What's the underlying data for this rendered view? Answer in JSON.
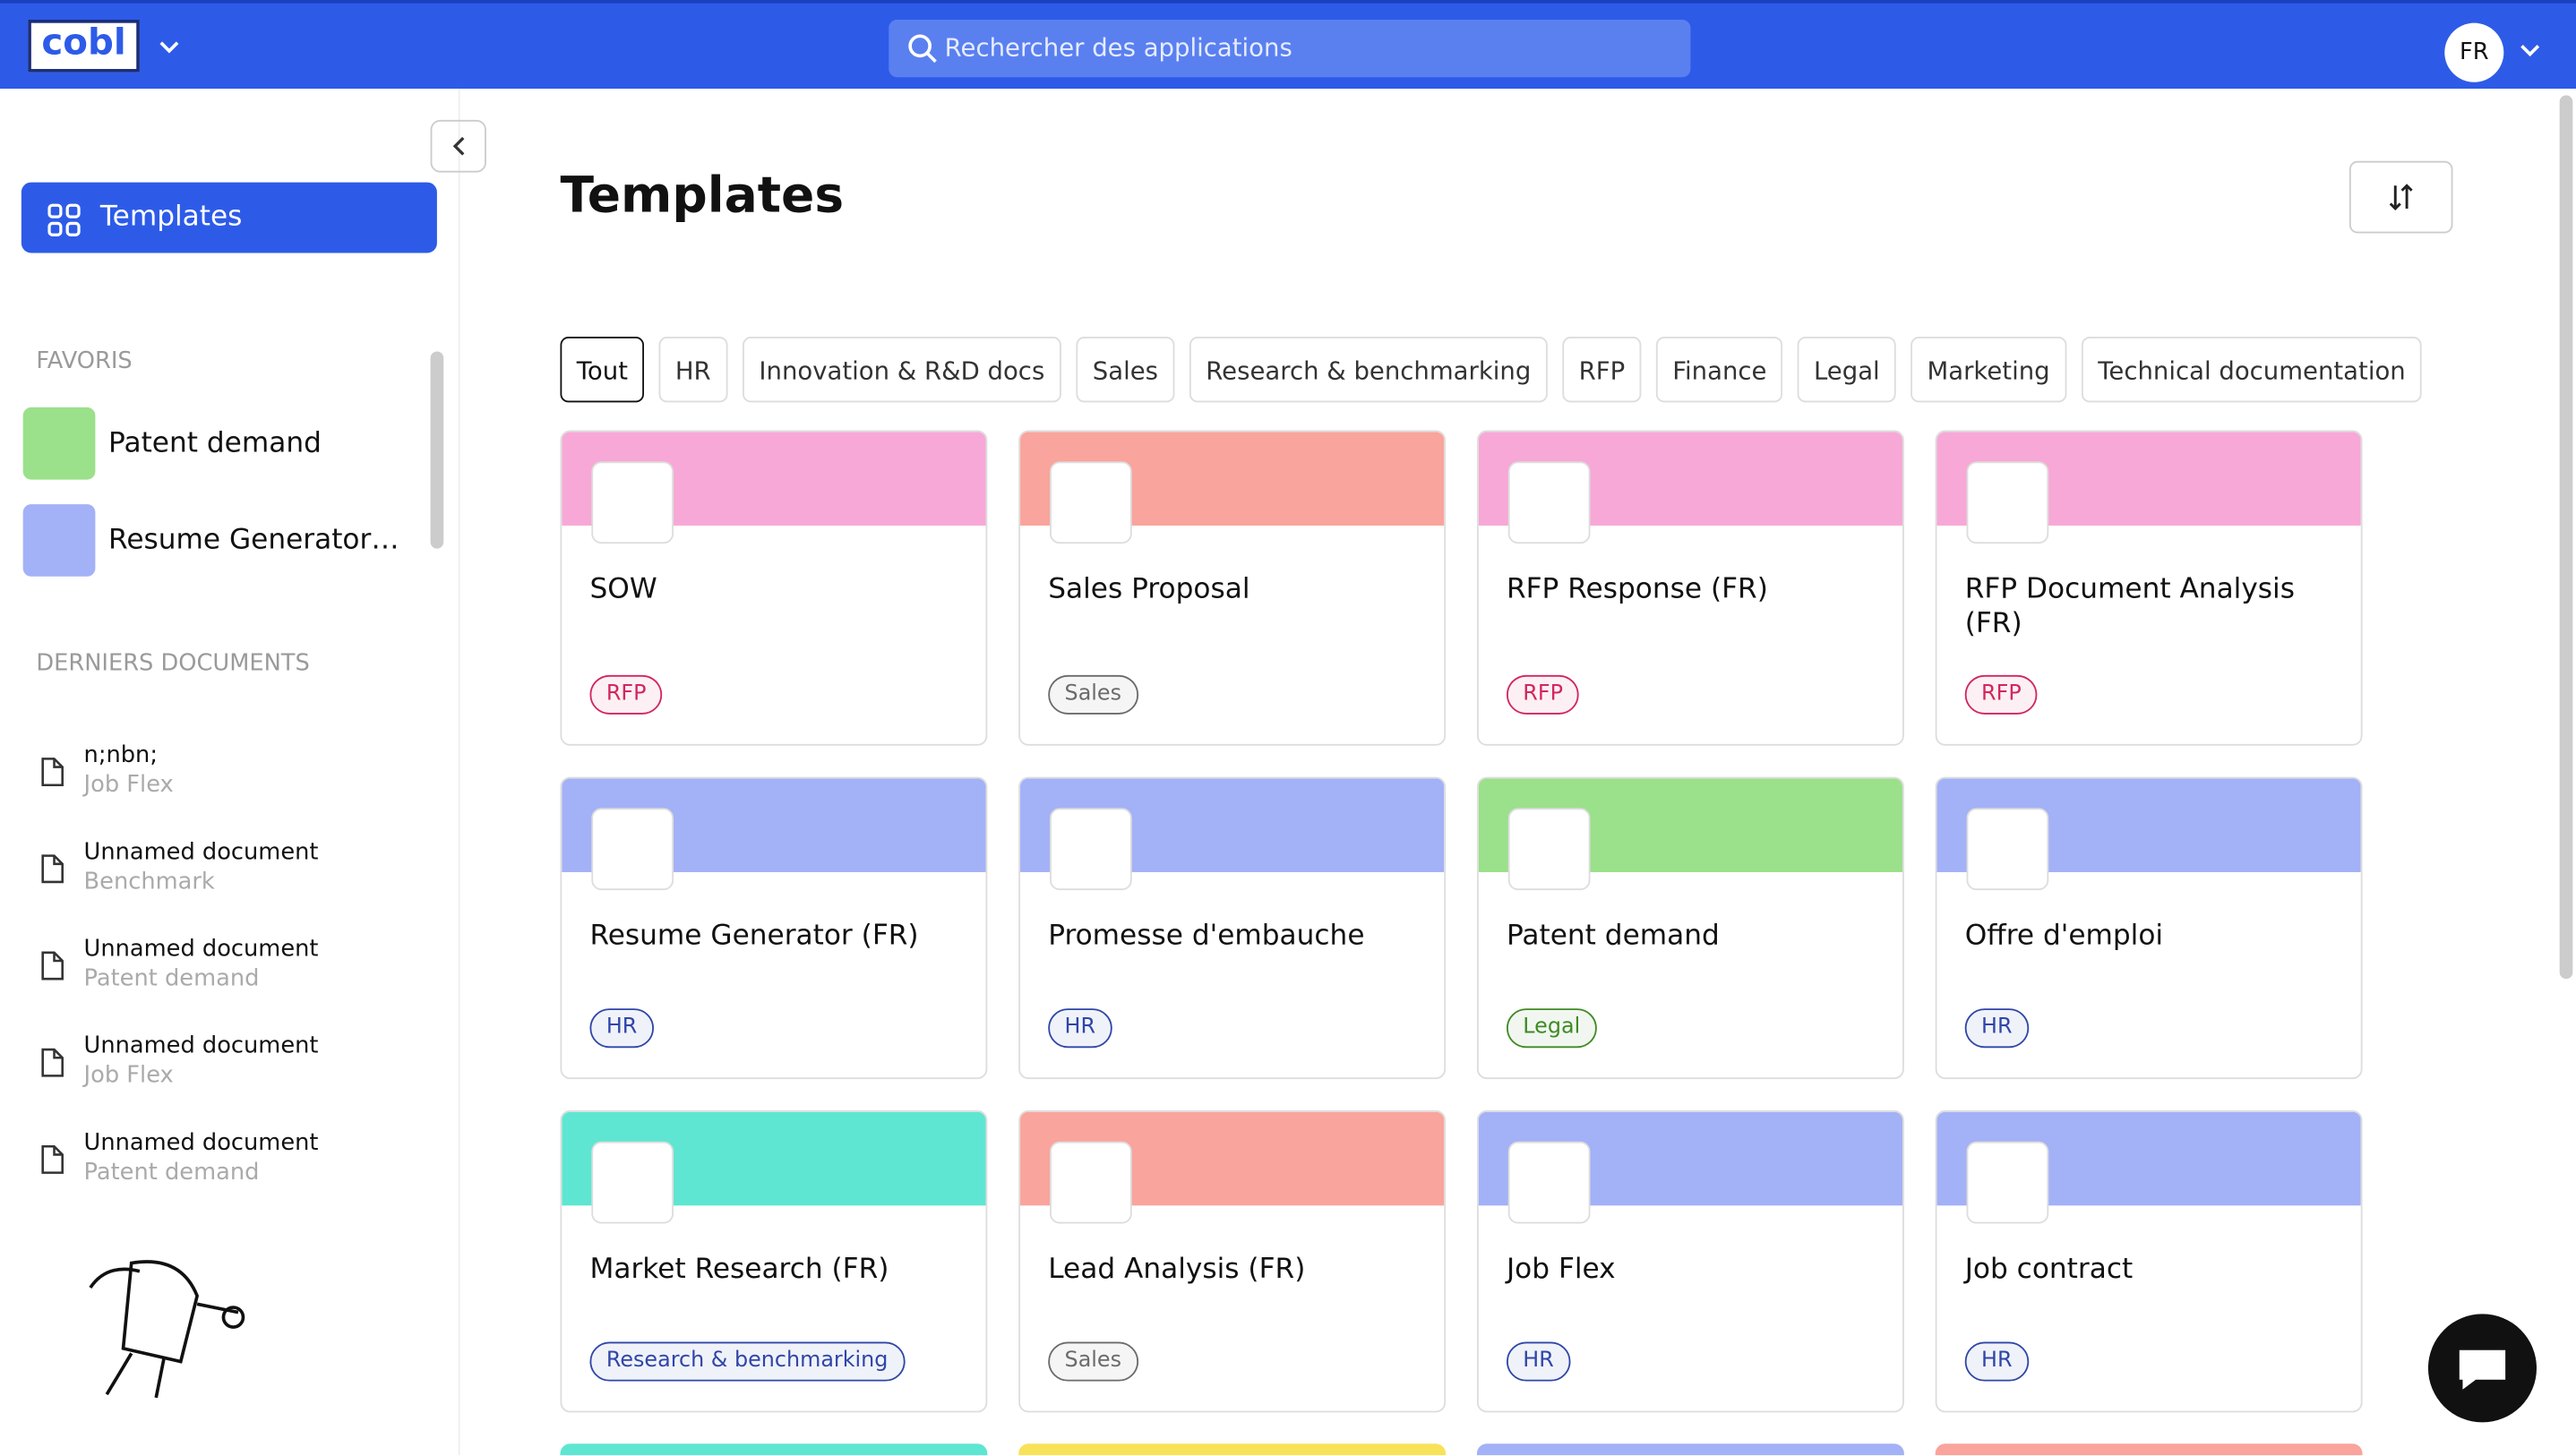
{
  "header": {
    "logo": "cobl",
    "search_placeholder": "Rechercher des applications",
    "avatar": "FR"
  },
  "sidebar": {
    "nav": "Templates",
    "favorites_title": "FAVORIS",
    "favorites": [
      {
        "label": "Patent demand",
        "color": "#9be08a"
      },
      {
        "label": "Resume Generator (FR)",
        "color": "#a3b1f7"
      }
    ],
    "recent_title": "DERNIERS DOCUMENTS",
    "recent": [
      {
        "title": "n;nbn;",
        "subtitle": "Job Flex"
      },
      {
        "title": "Unnamed document",
        "subtitle": "Benchmark"
      },
      {
        "title": "Unnamed document",
        "subtitle": "Patent demand"
      },
      {
        "title": "Unnamed document",
        "subtitle": "Job Flex"
      },
      {
        "title": "Unnamed document",
        "subtitle": "Patent demand"
      }
    ]
  },
  "main": {
    "title": "Templates",
    "filters": [
      "Tout",
      "HR",
      "Innovation & R&D docs",
      "Sales",
      "Research & benchmarking",
      "RFP",
      "Finance",
      "Legal",
      "Marketing",
      "Technical documentation"
    ],
    "cards": [
      {
        "title": "SOW",
        "tag": "RFP",
        "header_color": "#f7a8d6",
        "tag_color": "#d2265e"
      },
      {
        "title": "Sales Proposal",
        "tag": "Sales",
        "header_color": "#f9a49c",
        "tag_color": "#6b6b6b"
      },
      {
        "title": "RFP Response (FR)",
        "tag": "RFP",
        "header_color": "#f7a8d6",
        "tag_color": "#d2265e"
      },
      {
        "title": "RFP Document Analysis (FR)",
        "tag": "RFP",
        "header_color": "#f7a8d6",
        "tag_color": "#d2265e"
      },
      {
        "title": "Resume Generator (FR)",
        "tag": "HR",
        "header_color": "#a3b1f7",
        "tag_color": "#2f46a8"
      },
      {
        "title": "Promesse d'embauche",
        "tag": "HR",
        "header_color": "#a3b1f7",
        "tag_color": "#2f46a8"
      },
      {
        "title": "Patent demand",
        "tag": "Legal",
        "header_color": "#9be08a",
        "tag_color": "#3f8a24"
      },
      {
        "title": "Offre d'emploi",
        "tag": "HR",
        "header_color": "#a3b1f7",
        "tag_color": "#2f46a8"
      },
      {
        "title": "Market Research (FR)",
        "tag": "Research & benchmarking",
        "header_color": "#5ee6d2",
        "tag_color": "#2f46a8"
      },
      {
        "title": "Lead Analysis (FR)",
        "tag": "Sales",
        "header_color": "#f9a49c",
        "tag_color": "#6b6b6b"
      },
      {
        "title": "Job Flex",
        "tag": "HR",
        "header_color": "#a3b1f7",
        "tag_color": "#2f46a8"
      },
      {
        "title": "Job contract",
        "tag": "HR",
        "header_color": "#a3b1f7",
        "tag_color": "#2f46a8"
      }
    ]
  }
}
